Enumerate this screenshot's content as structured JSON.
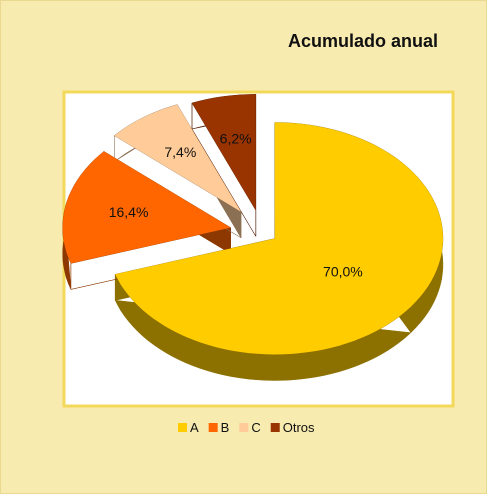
{
  "chart_data": {
    "type": "pie3d",
    "title": "Acumulado anual",
    "categories": [
      "A",
      "B",
      "C",
      "Otros"
    ],
    "values": [
      70.0,
      16.4,
      7.4,
      6.2
    ],
    "value_labels": [
      "70,0%",
      "16,4%",
      "7,4%",
      "6,2%"
    ],
    "colors": [
      "#ffcc00",
      "#ff6600",
      "#ffcc99",
      "#993300"
    ],
    "legend": "bottom"
  }
}
